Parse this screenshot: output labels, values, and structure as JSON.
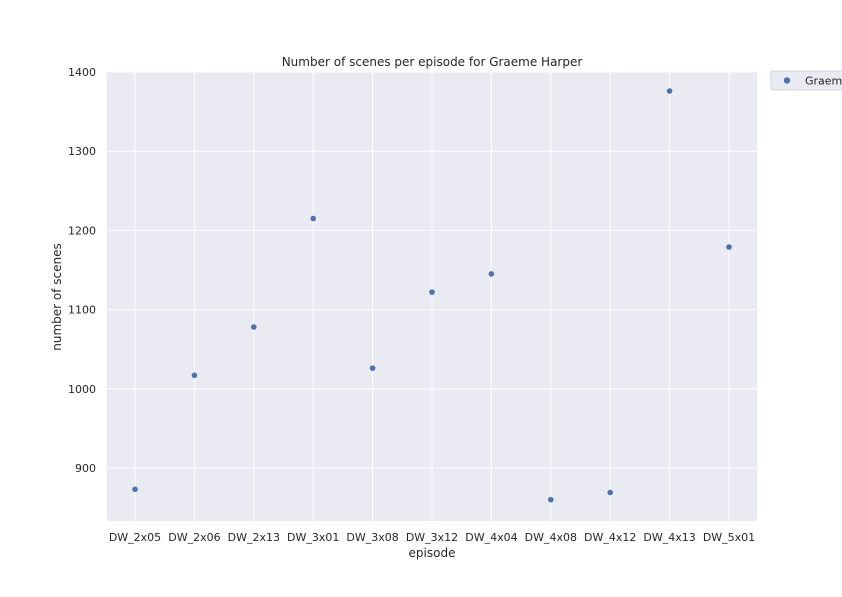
{
  "chart_data": {
    "type": "scatter",
    "title": "Number of scenes per episode for Graeme Harper",
    "xlabel": "episode",
    "ylabel": "number of scenes",
    "categories": [
      "DW_2x05",
      "DW_2x06",
      "DW_2x13",
      "DW_3x01",
      "DW_3x08",
      "DW_3x12",
      "DW_4x04",
      "DW_4x08",
      "DW_4x12",
      "DW_4x13",
      "DW_5x01"
    ],
    "series": [
      {
        "name": "Graeme Harper",
        "values": [
          873,
          1017,
          1078,
          1215,
          1026,
          1122,
          1145,
          860,
          869,
          1376,
          1179
        ]
      }
    ],
    "ylim": [
      833,
      1400
    ],
    "yticks": [
      900,
      1000,
      1100,
      1200,
      1300,
      1400
    ],
    "grid": true,
    "legend_position": "outside-right",
    "colors": {
      "background": "#eaeaf2",
      "grid": "#ffffff",
      "marker": "#4c72b0"
    }
  }
}
